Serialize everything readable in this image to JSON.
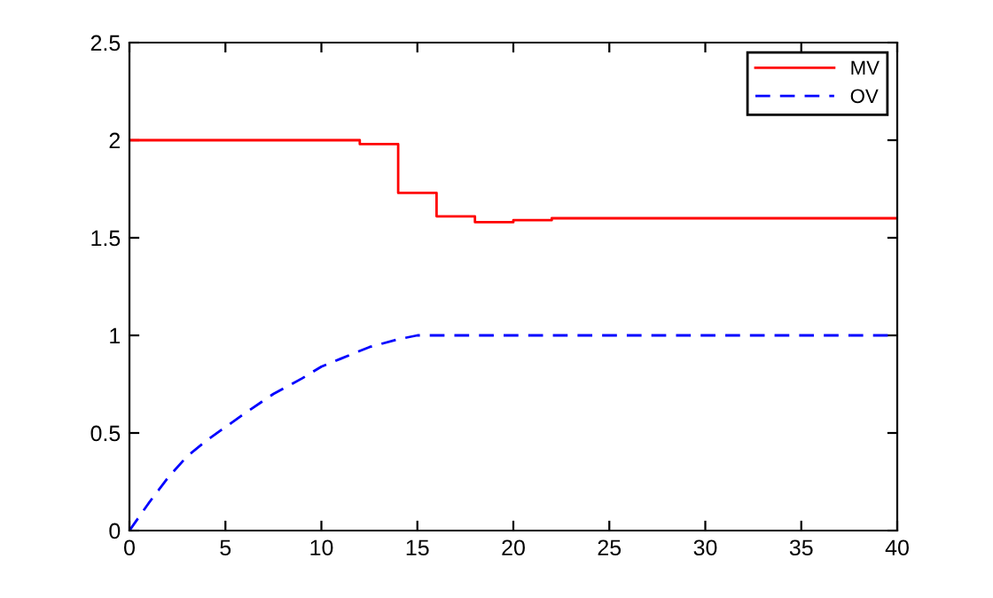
{
  "chart_data": {
    "type": "line",
    "xlim": [
      0,
      40
    ],
    "ylim": [
      0,
      2.5
    ],
    "xticks": [
      0,
      5,
      10,
      15,
      20,
      25,
      30,
      35,
      40
    ],
    "yticks": [
      0,
      0.5,
      1,
      1.5,
      2,
      2.5
    ],
    "grid": false,
    "legend": "top right",
    "series": [
      {
        "name": "MV",
        "type": "step",
        "color": "#ff0000",
        "line_style": "solid",
        "x": [
          0,
          12,
          14,
          16,
          18,
          20,
          22,
          24,
          40
        ],
        "values": [
          2.0,
          1.98,
          1.73,
          1.61,
          1.58,
          1.59,
          1.6,
          1.6,
          1.6
        ]
      },
      {
        "name": "OV",
        "color": "#0000ff",
        "line_style": "dashed",
        "x": [
          0,
          1,
          2,
          3,
          4,
          5,
          6,
          7.5,
          9,
          10,
          11,
          12.5,
          14,
          15,
          16,
          18,
          20,
          25,
          30,
          35,
          40
        ],
        "values": [
          0,
          0.14,
          0.27,
          0.38,
          0.46,
          0.53,
          0.6,
          0.7,
          0.78,
          0.84,
          0.88,
          0.94,
          0.98,
          1.0,
          1.0,
          1.0,
          1.0,
          1.0,
          1.0,
          1.0,
          1.0
        ]
      }
    ]
  }
}
